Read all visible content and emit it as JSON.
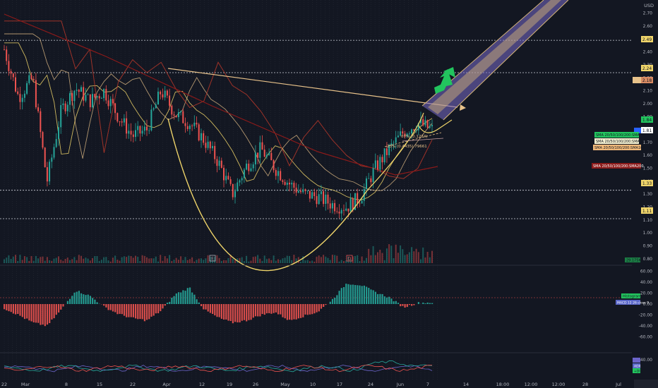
{
  "chart_data": {
    "type": "candlestick",
    "currency": "USD",
    "x_ticks": [
      "22",
      "Mar",
      "8",
      "15",
      "22",
      "Apr",
      "12",
      "19",
      "26",
      "May",
      "10",
      "17",
      "24",
      "Jun",
      "7",
      "14",
      "18:00",
      "12:00",
      "12:00",
      "28",
      "Jul"
    ],
    "y_ticks": [
      "2.70",
      "2.60",
      "2.50",
      "2.40",
      "2.30",
      "2.20",
      "2.10",
      "2.00",
      "1.90",
      "1.80",
      "1.70",
      "1.60",
      "1.50",
      "1.40",
      "1.30",
      "1.20",
      "1.10",
      "1.00",
      "0.90",
      "0.80"
    ],
    "ylim": [
      0.75,
      2.78
    ],
    "horizontal_levels": [
      2.49,
      2.24,
      1.33,
      1.11
    ],
    "price_tags": {
      "level_2_49": "2.49",
      "level_2_24": "2.24",
      "level_2_18": "2.18",
      "level_1_84": "1.84",
      "level_1_81": "1.81",
      "level_1_33": "1.33",
      "level_1_11": "1.11"
    },
    "price_points": [
      {
        "x": "Feb 22",
        "close": 2.42
      },
      {
        "x": "Feb 26",
        "close": 2.05
      },
      {
        "x": "Mar 1",
        "close": 2.2
      },
      {
        "x": "Mar 4",
        "close": 1.4
      },
      {
        "x": "Mar 8",
        "close": 1.95
      },
      {
        "x": "Mar 10",
        "close": 2.12
      },
      {
        "x": "Mar 15",
        "close": 2.02
      },
      {
        "x": "Mar 18",
        "close": 2.1
      },
      {
        "x": "Mar 22",
        "close": 1.9
      },
      {
        "x": "Mar 26",
        "close": 1.75
      },
      {
        "x": "Mar 29",
        "close": 1.8
      },
      {
        "x": "Apr 1",
        "close": 2.1
      },
      {
        "x": "Apr 5",
        "close": 1.92
      },
      {
        "x": "Apr 8",
        "close": 1.85
      },
      {
        "x": "Apr 12",
        "close": 1.72
      },
      {
        "x": "Apr 16",
        "close": 1.55
      },
      {
        "x": "Apr 19",
        "close": 1.3
      },
      {
        "x": "Apr 23",
        "close": 1.52
      },
      {
        "x": "Apr 26",
        "close": 1.65
      },
      {
        "x": "Apr 30",
        "close": 1.5
      },
      {
        "x": "May 3",
        "close": 1.38
      },
      {
        "x": "May 7",
        "close": 1.3
      },
      {
        "x": "May 10",
        "close": 1.28
      },
      {
        "x": "May 14",
        "close": 1.22
      },
      {
        "x": "May 17",
        "close": 1.2
      },
      {
        "x": "May 21",
        "close": 1.28
      },
      {
        "x": "May 24",
        "close": 1.5
      },
      {
        "x": "May 28",
        "close": 1.65
      },
      {
        "x": "Jun 1",
        "close": 1.78
      },
      {
        "x": "Jun 4",
        "close": 1.85
      },
      {
        "x": "Jun 7",
        "close": 1.8
      }
    ],
    "indicator_labels": {
      "sma20": "SMA 20/50/100/200:SMA20",
      "sma50": "SMA 20/50/100/200:SMA50",
      "sma100": "SMA 20/50/100/200:SMA100",
      "sma200": "SMA 20/50/100/200:SMA200",
      "volume_tag": "29.175K",
      "histogram_tag": "Histogram",
      "macd_tag": "MACD 12 26 close 9"
    },
    "pattern_labels": {
      "label_1": "07% (0.1274)",
      "label_2": "23% (0.4435) 79661"
    },
    "markers": {
      "event_a": "E",
      "event_b": "D"
    },
    "macd_ticks": [
      "60.00",
      "40.00",
      "20.00",
      "0.00",
      "-20.00",
      "-40.00",
      "-60.00"
    ],
    "macd_values": [
      -8,
      -20,
      -34,
      -40,
      -10,
      25,
      15,
      -5,
      -18,
      -26,
      -30,
      -12,
      18,
      30,
      -10,
      -25,
      -34,
      -30,
      -20,
      -15,
      -30,
      -22,
      -14,
      8,
      38,
      35,
      22,
      12,
      -6,
      2,
      3
    ],
    "adx_ticks": [
      "40.00"
    ],
    "adx_tags": [
      "ADX",
      "+DI",
      "-DI"
    ]
  }
}
